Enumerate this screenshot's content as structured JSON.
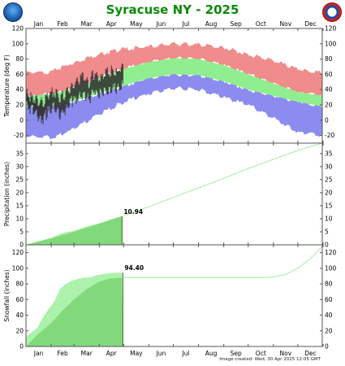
{
  "title": "Syracuse NY - 2025",
  "footer": "Image created: Wed, 30 Apr 2025 12:05 GMT",
  "months": [
    "Jan",
    "Feb",
    "Mar",
    "Apr",
    "May",
    "Jun",
    "Jul",
    "Aug",
    "Sep",
    "Oct",
    "Nov",
    "Dec"
  ],
  "colors": {
    "record_band": "#f08c8c",
    "normal_band": "#90ee90",
    "record_low_band": "#8c8cf0",
    "observed": "#333333",
    "accum_fill": "#5a9a3c",
    "precip_normal": "#a0f0a0",
    "snow_normal": "#a0f0a0",
    "title": "#0a8a0a"
  },
  "chart_data": [
    {
      "type": "area",
      "panel": "temperature",
      "ylabel": "Temperature (deg F)",
      "ylim": [
        -30,
        120
      ],
      "yticks": [
        -20,
        0,
        20,
        40,
        60,
        80,
        100,
        120
      ],
      "x_unit": "day of year",
      "grid": false,
      "series": [
        {
          "key": "record_high",
          "x": [
            1,
            32,
            60,
            91,
            121,
            152,
            182,
            213,
            244,
            274,
            305,
            335,
            365
          ],
          "values": [
            62,
            63,
            76,
            86,
            93,
            96,
            100,
            99,
            95,
            86,
            78,
            66,
            62
          ]
        },
        {
          "key": "normal_high",
          "x": [
            1,
            32,
            60,
            91,
            121,
            152,
            182,
            213,
            244,
            274,
            305,
            335,
            365
          ],
          "values": [
            32,
            34,
            42,
            55,
            67,
            76,
            81,
            80,
            72,
            60,
            48,
            37,
            32
          ]
        },
        {
          "key": "normal_low",
          "x": [
            1,
            32,
            60,
            91,
            121,
            152,
            182,
            213,
            244,
            274,
            305,
            335,
            365
          ],
          "values": [
            18,
            19,
            25,
            35,
            45,
            55,
            60,
            59,
            51,
            40,
            32,
            24,
            18
          ]
        },
        {
          "key": "record_low",
          "x": [
            1,
            32,
            60,
            91,
            121,
            152,
            182,
            213,
            244,
            274,
            305,
            335,
            365
          ],
          "values": [
            -20,
            -23,
            -12,
            8,
            24,
            35,
            42,
            40,
            30,
            20,
            3,
            -15,
            -20
          ]
        },
        {
          "key": "observed_high",
          "x": [
            1,
            8,
            15,
            22,
            29,
            36,
            43,
            50,
            57,
            64,
            71,
            78,
            85,
            92,
            99,
            106,
            113,
            120
          ],
          "values": [
            34,
            30,
            26,
            24,
            33,
            38,
            29,
            35,
            44,
            52,
            58,
            48,
            62,
            55,
            60,
            66,
            62,
            70
          ]
        },
        {
          "key": "observed_low",
          "x": [
            1,
            8,
            15,
            22,
            29,
            36,
            43,
            50,
            57,
            64,
            71,
            78,
            85,
            92,
            99,
            106,
            113,
            120
          ],
          "values": [
            20,
            14,
            6,
            2,
            12,
            18,
            8,
            15,
            24,
            30,
            34,
            26,
            38,
            34,
            38,
            42,
            40,
            46
          ]
        }
      ]
    },
    {
      "type": "area",
      "panel": "precipitation",
      "ylabel": "Precipitation (inches)",
      "ylim": [
        0,
        39
      ],
      "yticks": [
        0,
        5,
        10,
        15,
        20,
        25,
        30,
        35
      ],
      "x_unit": "day of year",
      "label": "10.94",
      "series": [
        {
          "key": "normal_accum",
          "x": [
            1,
            32,
            60,
            91,
            121,
            152,
            182,
            213,
            244,
            274,
            305,
            335,
            365
          ],
          "values": [
            0,
            2.5,
            5.0,
            8.1,
            11.2,
            14.6,
            18.2,
            21.8,
            25.5,
            29.3,
            32.8,
            36.2,
            39.0
          ]
        },
        {
          "key": "observed_accum",
          "x": [
            1,
            15,
            32,
            45,
            60,
            75,
            91,
            105,
            119
          ],
          "values": [
            0,
            1.3,
            2.6,
            4.5,
            5.4,
            7.0,
            8.3,
            9.7,
            10.94
          ]
        }
      ]
    },
    {
      "type": "area",
      "panel": "snowfall",
      "ylabel": "Snowfall (inches)",
      "ylim": [
        0,
        130
      ],
      "yticks": [
        0,
        20,
        40,
        60,
        80,
        100,
        120
      ],
      "x_unit": "day of year",
      "label": "94.40",
      "series": [
        {
          "key": "normal_accum",
          "x": [
            1,
            15,
            32,
            45,
            60,
            75,
            91,
            105,
            119,
            150,
            200,
            250,
            290,
            305,
            320,
            335,
            350,
            365
          ],
          "values": [
            0,
            15,
            30,
            45,
            60,
            73,
            83,
            87,
            88,
            88,
            88,
            88,
            88,
            89,
            92,
            100,
            112,
            128
          ]
        },
        {
          "key": "observed_accum",
          "x": [
            1,
            8,
            15,
            22,
            29,
            36,
            43,
            50,
            57,
            64,
            71,
            78,
            85,
            92,
            99,
            106,
            113,
            120
          ],
          "values": [
            12,
            18,
            24,
            38,
            48,
            58,
            74,
            80,
            84,
            86,
            88,
            88,
            90,
            92,
            93,
            94,
            94.4,
            94.4
          ]
        }
      ]
    }
  ]
}
